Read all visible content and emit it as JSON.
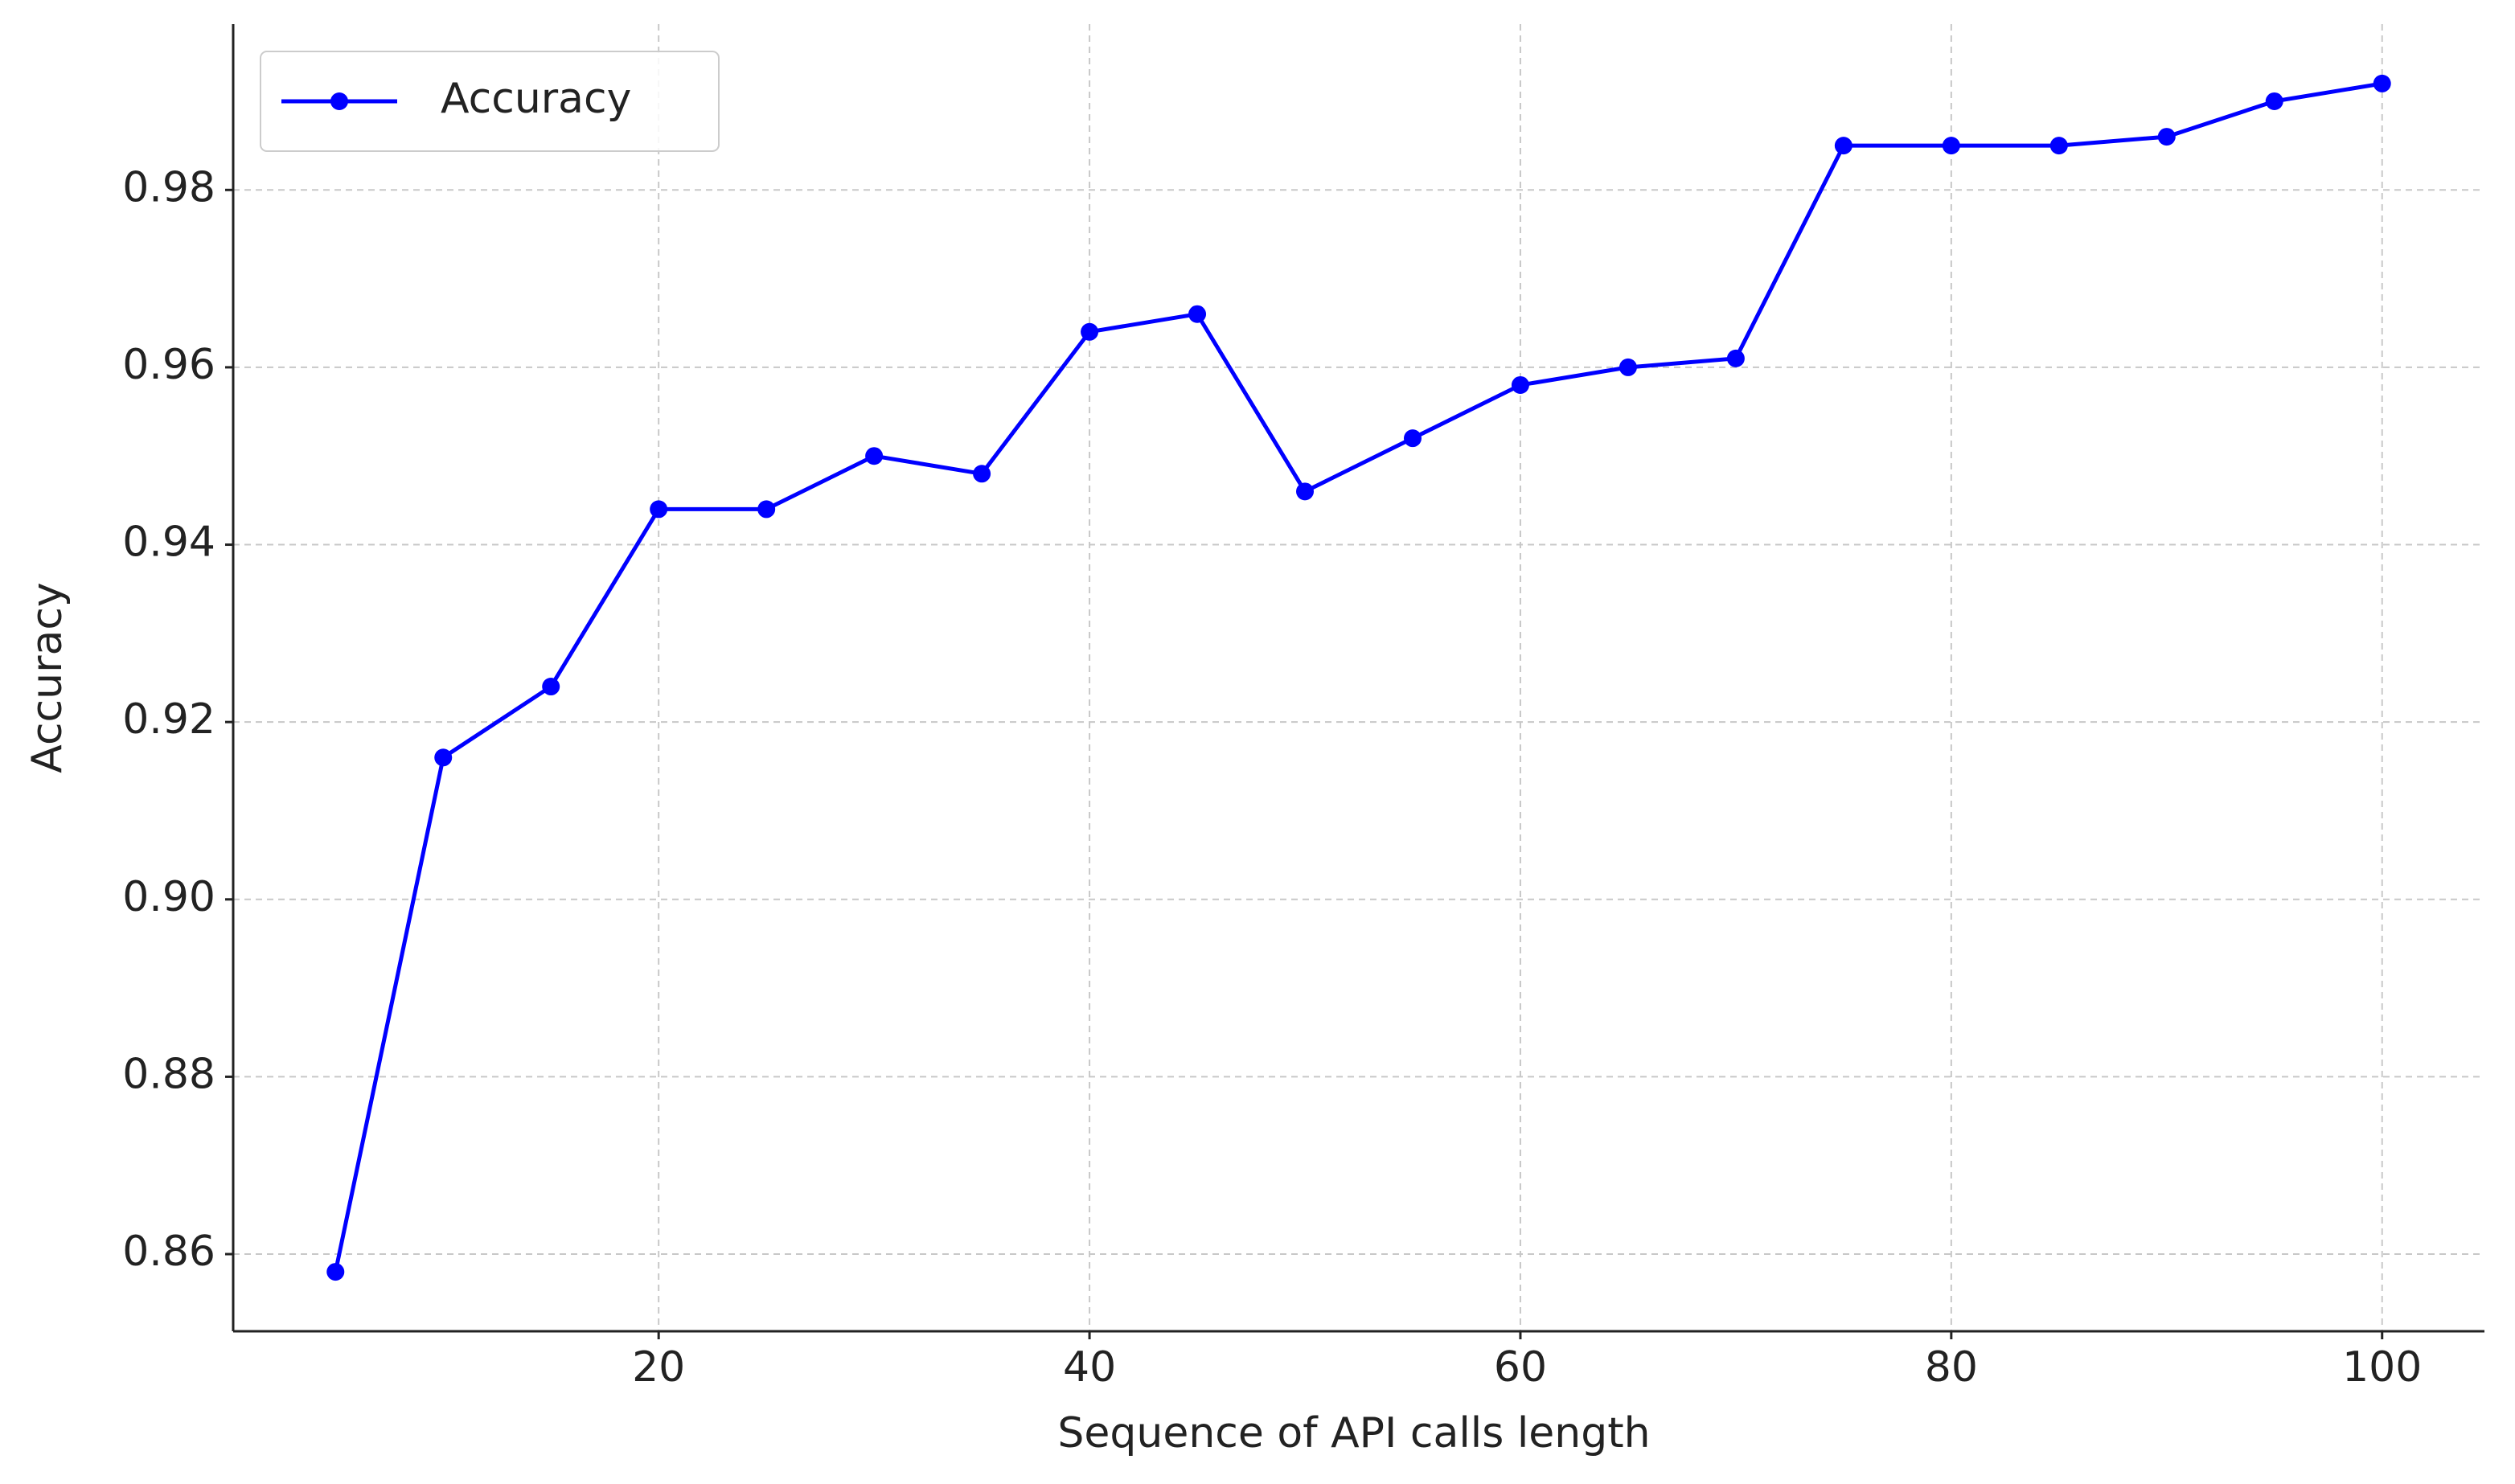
{
  "chart_data": {
    "type": "line",
    "x_label": "Sequence of API calls length",
    "y_label": "Accuracy",
    "x": [
      5,
      10,
      15,
      20,
      25,
      30,
      35,
      40,
      45,
      50,
      55,
      60,
      65,
      70,
      75,
      80,
      85,
      90,
      95,
      100
    ],
    "series": [
      {
        "name": "Accuracy",
        "color": "#0000ff",
        "values": [
          0.858,
          0.916,
          0.924,
          0.944,
          0.944,
          0.95,
          0.948,
          0.964,
          0.966,
          0.946,
          0.952,
          0.958,
          0.96,
          0.961,
          0.985,
          0.985,
          0.985,
          0.986,
          0.99,
          0.992
        ]
      }
    ],
    "xlim": [
      0.25,
      104.75
    ],
    "xticks": [
      20,
      40,
      60,
      80,
      100
    ],
    "ylim": [
      0.8513,
      0.9987
    ],
    "yticks": [
      0.86,
      0.88,
      {
        "value": 0.9,
        "label": "0.90"
      },
      0.92,
      0.94,
      0.96,
      0.98
    ],
    "grid": true,
    "legend": "upper left"
  }
}
